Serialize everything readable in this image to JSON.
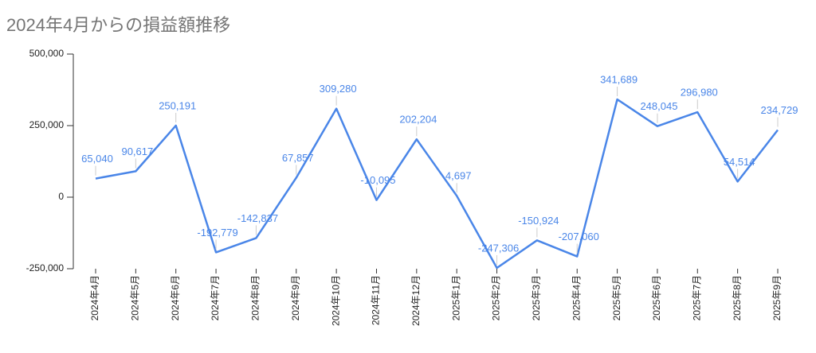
{
  "chart_data": {
    "type": "line",
    "title": "2024年4月からの損益額推移",
    "categories": [
      "2024年4月",
      "2024年5月",
      "2024年6月",
      "2024年7月",
      "2024年8月",
      "2024年9月",
      "2024年10月",
      "2024年11月",
      "2024年12月",
      "2025年1月",
      "2025年2月",
      "2025年3月",
      "2025年4月",
      "2025年5月",
      "2025年6月",
      "2025年7月",
      "2025年8月",
      "2025年9月"
    ],
    "values": [
      65040,
      90617,
      250191,
      -192779,
      -142837,
      67857,
      309280,
      -10095,
      202204,
      4697,
      -247306,
      -150924,
      -207060,
      341689,
      248045,
      296980,
      54514,
      234729
    ],
    "value_labels": [
      "65,040",
      "90,617",
      "250,191",
      "-192,779",
      "-142,837",
      "67,857",
      "309,280",
      "-10,095",
      "202,204",
      "4,697",
      "-247,306",
      "-150,924",
      "-207,060",
      "341,689",
      "248,045",
      "296,980",
      "54,514",
      "234,729"
    ],
    "color": "#4a86e8",
    "ylim": [
      -250000,
      500000
    ],
    "yticks": [
      {
        "value": -250000,
        "label": "-250,000"
      },
      0,
      {
        "value": 250000,
        "label": "250,000"
      },
      {
        "value": 500000,
        "label": "500,000"
      }
    ],
    "grid": false
  }
}
